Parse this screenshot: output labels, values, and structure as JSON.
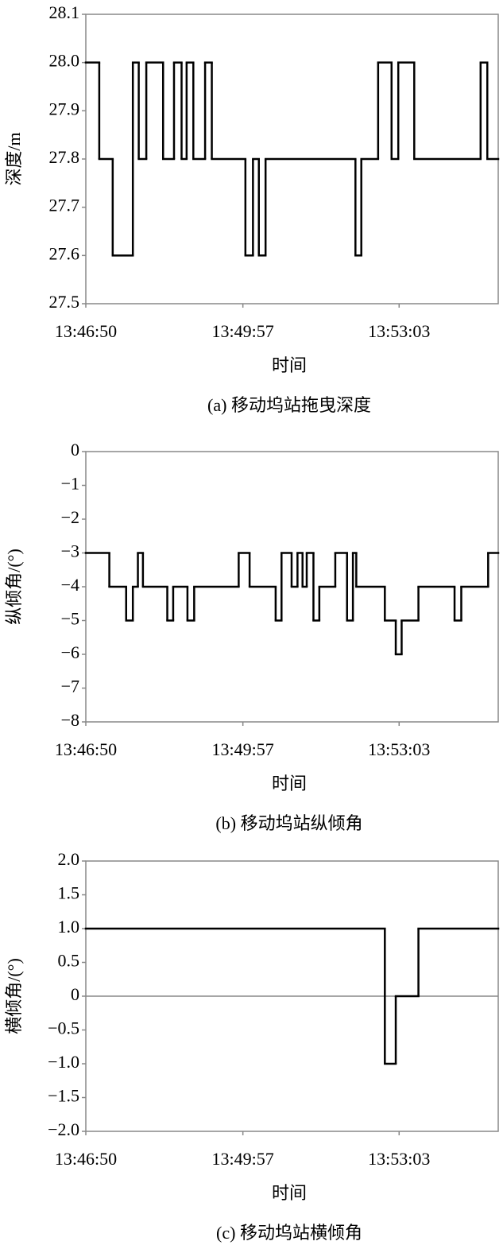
{
  "chart_data": [
    {
      "type": "line",
      "drawstyle": "steps-post",
      "caption": "(a) 移动坞站拖曳深度",
      "xlabel": "时间",
      "ylabel": "深度/m",
      "color": "#000000",
      "x": [
        "13:46:50",
        "13:47:06",
        "13:47:22",
        "13:47:46",
        "13:47:53",
        "13:48:02",
        "13:48:22",
        "13:48:35",
        "13:48:44",
        "13:48:50",
        "13:48:58",
        "13:49:12",
        "13:49:20",
        "13:50:00",
        "13:50:09",
        "13:50:16",
        "13:50:24",
        "13:52:11",
        "13:52:18",
        "13:52:38",
        "13:52:54",
        "13:53:02",
        "13:53:21",
        "13:54:40",
        "13:54:48"
      ],
      "values": [
        28.0,
        27.8,
        27.6,
        28.0,
        27.8,
        28.0,
        27.8,
        28.0,
        27.8,
        28.0,
        27.8,
        28.0,
        27.8,
        27.6,
        27.8,
        27.6,
        27.8,
        27.6,
        27.8,
        28.0,
        27.8,
        28.0,
        27.8,
        28.0,
        27.8
      ],
      "xlim": [
        "13:46:50",
        "13:55:01"
      ],
      "xticks": [
        "13:46:50",
        "13:49:57",
        "13:53:03"
      ],
      "ylim": [
        27.5,
        28.1
      ],
      "yticks": [
        27.5,
        27.6,
        27.7,
        27.8,
        27.9,
        {
          "value": 28,
          "label": "28.0"
        },
        28.1
      ]
    },
    {
      "type": "line",
      "drawstyle": "steps-post",
      "caption": "(b) 移动坞站纵倾角",
      "xlabel": "时间",
      "ylabel": "纵倾角/(°)",
      "color": "#000000",
      "x": [
        "13:46:50",
        "13:47:18",
        "13:47:38",
        "13:47:46",
        "13:47:52",
        "13:47:58",
        "13:48:27",
        "13:48:34",
        "13:48:51",
        "13:48:59",
        "13:49:52",
        "13:50:05",
        "13:50:36",
        "13:50:43",
        "13:50:55",
        "13:51:02",
        "13:51:08",
        "13:51:13",
        "13:51:21",
        "13:51:28",
        "13:51:47",
        "13:52:01",
        "13:52:08",
        "13:52:12",
        "13:52:46",
        "13:52:59",
        "13:53:06",
        "13:53:26",
        "13:54:09",
        "13:54:17",
        "13:54:49"
      ],
      "values": [
        -3,
        -4,
        -5,
        -4,
        -3,
        -4,
        -5,
        -4,
        -5,
        -4,
        -3,
        -4,
        -5,
        -3,
        -4,
        -3,
        -4,
        -3,
        -5,
        -4,
        -3,
        -5,
        -3,
        -4,
        -5,
        -6,
        -5,
        -4,
        -5,
        -4,
        -3
      ],
      "xlim": [
        "13:46:50",
        "13:55:01"
      ],
      "xticks": [
        "13:46:50",
        "13:49:57",
        "13:53:03"
      ],
      "ylim": [
        -8,
        0
      ],
      "yticks": [
        {
          "value": -8,
          "label": "−8"
        },
        {
          "value": -7,
          "label": "−7"
        },
        {
          "value": -6,
          "label": "−6"
        },
        {
          "value": -5,
          "label": "−5"
        },
        {
          "value": -4,
          "label": "−4"
        },
        {
          "value": -3,
          "label": "−3"
        },
        {
          "value": -2,
          "label": "−2"
        },
        {
          "value": -1,
          "label": "−1"
        },
        0
      ]
    },
    {
      "type": "line",
      "drawstyle": "steps-post",
      "caption": "(c) 移动坞站横倾角",
      "xlabel": "时间",
      "ylabel": "横倾角/(°)",
      "color": "#000000",
      "zero_line": true,
      "x": [
        "13:46:50",
        "13:52:46",
        "13:52:59",
        "13:53:26"
      ],
      "values": [
        1,
        -1,
        0,
        1
      ],
      "xlim": [
        "13:46:50",
        "13:55:01"
      ],
      "xticks": [
        "13:46:50",
        "13:49:57",
        "13:53:03"
      ],
      "ylim": [
        -2,
        2
      ],
      "yticks": [
        {
          "value": -2,
          "label": "−2.0"
        },
        {
          "value": -1.5,
          "label": "−1.5"
        },
        {
          "value": -1,
          "label": "−1.0"
        },
        {
          "value": -0.5,
          "label": "−0.5"
        },
        0,
        0.5,
        {
          "value": 1,
          "label": "1.0"
        },
        1.5,
        {
          "value": 2,
          "label": "2.0"
        }
      ]
    }
  ]
}
